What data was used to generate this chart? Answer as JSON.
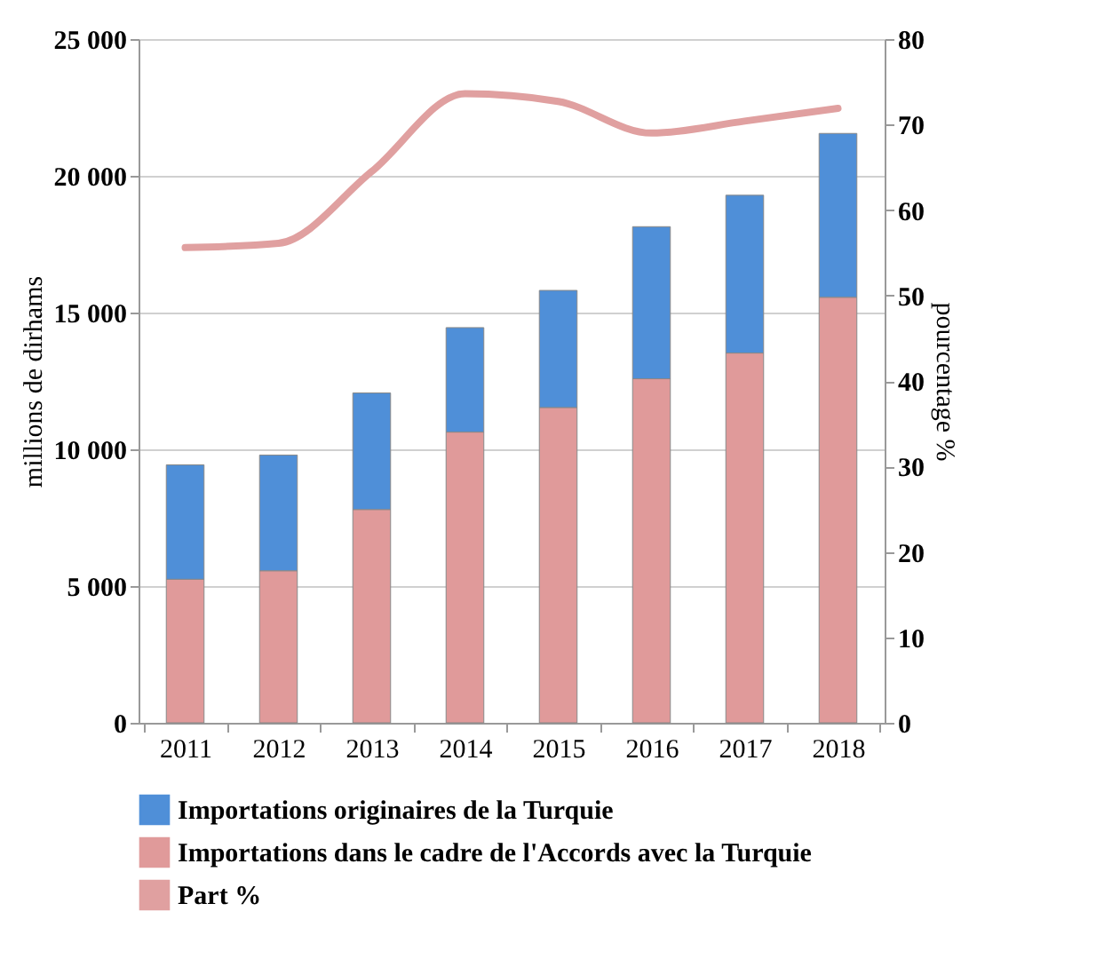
{
  "chart_data": {
    "type": "bar",
    "stacked": true,
    "categories": [
      "2011",
      "2012",
      "2013",
      "2014",
      "2015",
      "2016",
      "2017",
      "2018"
    ],
    "xlabel": null,
    "ylabel": "millions de dirhams",
    "y2label": "pourcentage  %",
    "ylim": [
      0,
      25000
    ],
    "yticks": [
      0,
      {
        "value": 5000,
        "label": "5 000"
      },
      {
        "value": 10000,
        "label": "10 000"
      },
      {
        "value": 15000,
        "label": "15 000"
      },
      {
        "value": 20000,
        "label": "20 000"
      },
      {
        "value": 25000,
        "label": "25 000"
      }
    ],
    "y2lim": [
      0,
      80
    ],
    "y2ticks": [
      0,
      10,
      20,
      30,
      40,
      50,
      60,
      70,
      80
    ],
    "grid": "y",
    "legend": "bottom",
    "series": [
      {
        "name": "Importations dans le cadre de l'Accords avec la Turquie",
        "color": "#e09a9a",
        "values": [
          5250,
          5560,
          7800,
          10630,
          11530,
          12580,
          13520,
          15560
        ]
      },
      {
        "name": "Importations originaires de la Turquie",
        "color": "#4f8fd8",
        "values": [
          4180,
          4230,
          4260,
          3820,
          4280,
          5560,
          5770,
          5990
        ]
      },
      {
        "name": "Part %",
        "type": "line",
        "axis": "y2",
        "color": "#e0a0a0",
        "values": [
          55.6,
          56.1,
          64.5,
          73.6,
          72.7,
          69.0,
          70.4,
          71.9
        ]
      }
    ]
  }
}
